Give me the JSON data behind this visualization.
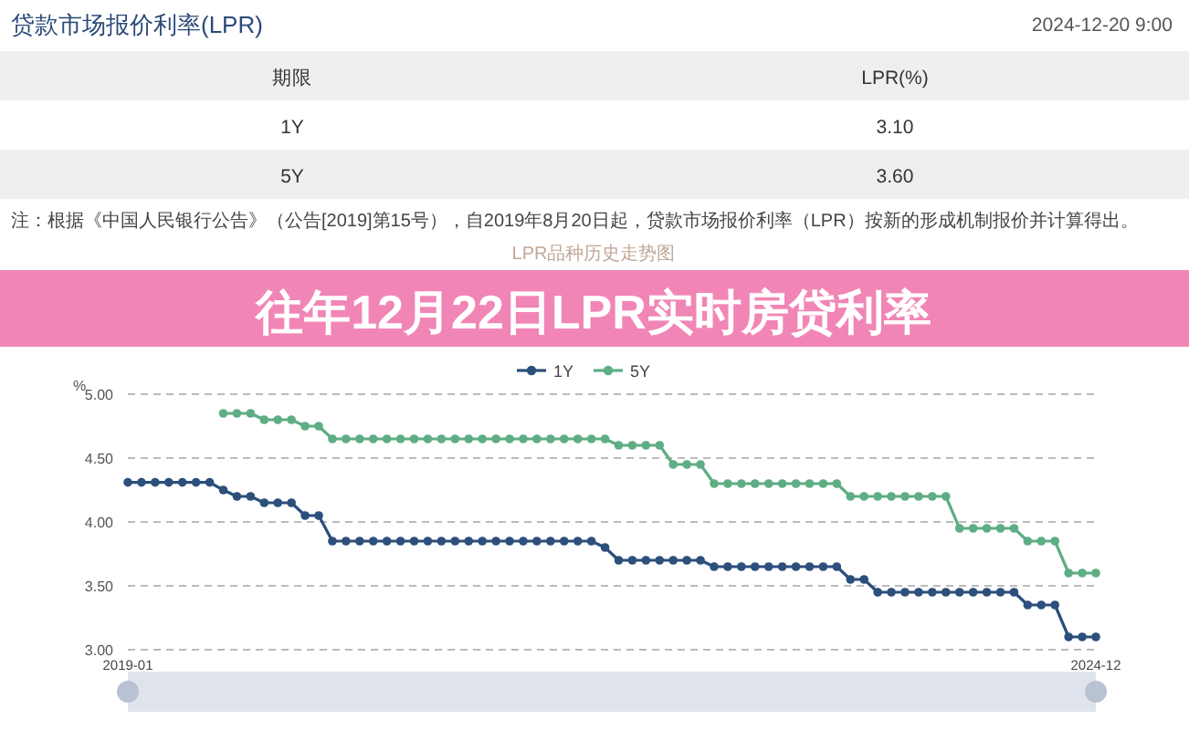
{
  "chart_data": [
    {
      "type": "other",
      "title": "贷款市场报价利率(LPR)",
      "subtitle": "2024-12-20 9:00",
      "xlabel": "期限",
      "ylabel": "LPR(%)",
      "categories": [
        "1Y",
        "5Y"
      ],
      "value_labels": [
        "3.10",
        "3.60"
      ],
      "annotations": [
        "注：根据《中国人民银行公告》（公告[2019]第15号），自2019年8月20日起，贷款市场报价利率（LPR）按新的形成机制报价并计算得出。"
      ]
    },
    {
      "type": "line",
      "title": "往年12月22日LPR实时房贷利率",
      "subtitle": "LPR品种历史走势图",
      "ylabel": "%",
      "categories": [
        "2019-01",
        null,
        null,
        null,
        null,
        null,
        null,
        null,
        null,
        null,
        null,
        null,
        null,
        null,
        null,
        null,
        null,
        null,
        null,
        null,
        null,
        null,
        null,
        null,
        null,
        null,
        null,
        null,
        null,
        null,
        null,
        null,
        null,
        null,
        null,
        null,
        null,
        null,
        null,
        null,
        null,
        null,
        null,
        null,
        null,
        null,
        null,
        null,
        null,
        null,
        null,
        null,
        null,
        null,
        null,
        null,
        null,
        null,
        null,
        null,
        null,
        null,
        null,
        null,
        null,
        null,
        null,
        null,
        null,
        null,
        null,
        "2024-12"
      ],
      "series": [
        {
          "name": "1Y",
          "color": "#2c4f7c",
          "values": [
            4.31,
            4.31,
            4.31,
            4.31,
            4.31,
            4.31,
            4.31,
            4.25,
            4.2,
            4.2,
            4.15,
            4.15,
            4.15,
            4.05,
            4.05,
            3.85,
            3.85,
            3.85,
            3.85,
            3.85,
            3.85,
            3.85,
            3.85,
            3.85,
            3.85,
            3.85,
            3.85,
            3.85,
            3.85,
            3.85,
            3.85,
            3.85,
            3.85,
            3.85,
            3.85,
            3.8,
            3.7,
            3.7,
            3.7,
            3.7,
            3.7,
            3.7,
            3.7,
            3.65,
            3.65,
            3.65,
            3.65,
            3.65,
            3.65,
            3.65,
            3.65,
            3.65,
            3.65,
            3.55,
            3.55,
            3.45,
            3.45,
            3.45,
            3.45,
            3.45,
            3.45,
            3.45,
            3.45,
            3.45,
            3.45,
            3.45,
            3.35,
            3.35,
            3.35,
            3.1,
            3.1,
            3.1
          ]
        },
        {
          "name": "5Y",
          "color": "#5fad85",
          "values": [
            null,
            null,
            null,
            null,
            null,
            null,
            null,
            4.85,
            4.85,
            4.85,
            4.8,
            4.8,
            4.8,
            4.75,
            4.75,
            4.65,
            4.65,
            4.65,
            4.65,
            4.65,
            4.65,
            4.65,
            4.65,
            4.65,
            4.65,
            4.65,
            4.65,
            4.65,
            4.65,
            4.65,
            4.65,
            4.65,
            4.65,
            4.65,
            4.65,
            4.65,
            4.6,
            4.6,
            4.6,
            4.6,
            4.45,
            4.45,
            4.45,
            4.3,
            4.3,
            4.3,
            4.3,
            4.3,
            4.3,
            4.3,
            4.3,
            4.3,
            4.3,
            4.2,
            4.2,
            4.2,
            4.2,
            4.2,
            4.2,
            4.2,
            4.2,
            3.95,
            3.95,
            3.95,
            3.95,
            3.95,
            3.85,
            3.85,
            3.85,
            3.6,
            3.6,
            3.6
          ]
        }
      ],
      "ylim": [
        3.0,
        5.0
      ],
      "yticks": [
        {
          "value": 3,
          "label": "3.00"
        },
        {
          "value": 3.5,
          "label": "3.50"
        },
        {
          "value": 4,
          "label": "4.00"
        },
        {
          "value": 4.5,
          "label": "4.50"
        },
        {
          "value": 5,
          "label": "5.00"
        }
      ],
      "grid": "y",
      "legend": "top",
      "marker": "circle",
      "line_style": "solid"
    }
  ]
}
